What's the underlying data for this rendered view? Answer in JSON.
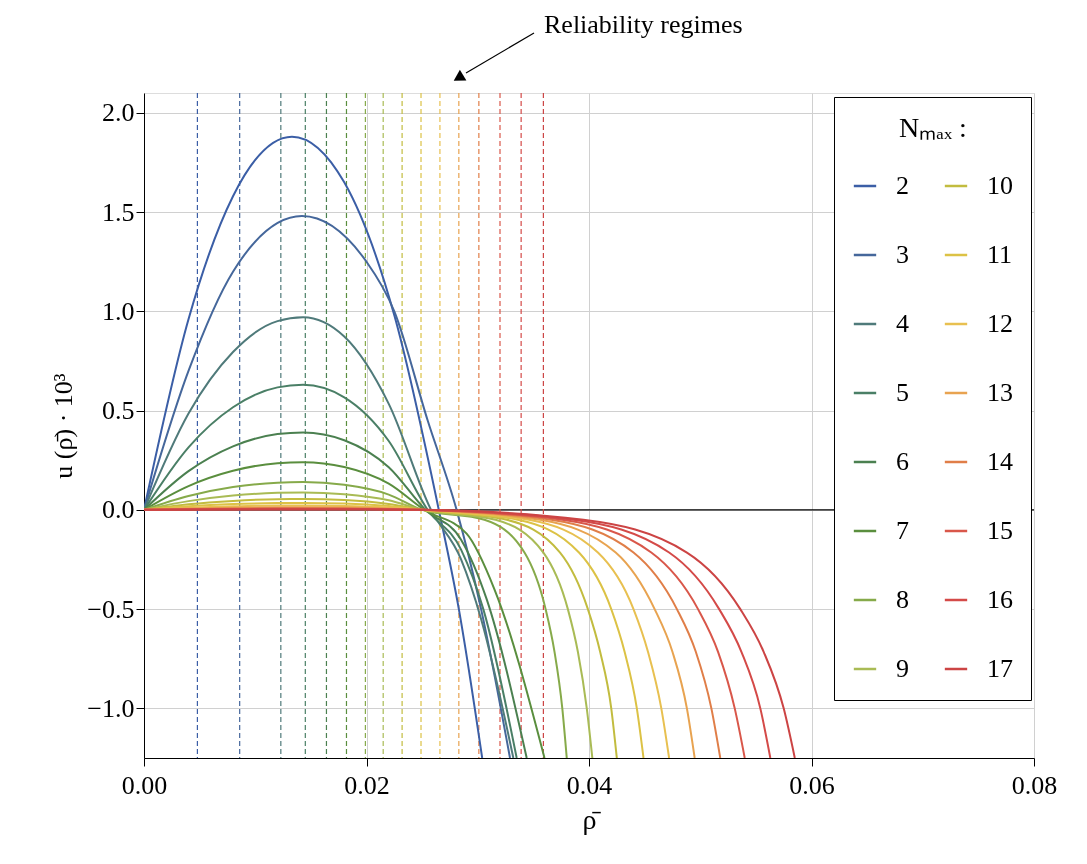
{
  "chart_data": {
    "type": "line",
    "xlabel": "ρ̄",
    "ylabel": "u (ρ̄) · 10³",
    "legend_title": "Nₘₐₓ :",
    "annotations": [
      "Reliability regimes"
    ],
    "xlim": [
      0,
      0.08
    ],
    "ylim": [
      -1.25,
      2.1
    ],
    "xticks": [
      {
        "value": 0,
        "label": "0.00"
      },
      {
        "value": 0.02,
        "label": "0.02"
      },
      {
        "value": 0.04,
        "label": "0.04"
      },
      {
        "value": 0.06,
        "label": "0.06"
      },
      {
        "value": 0.08,
        "label": "0.08"
      }
    ],
    "yticks": [
      {
        "value": -1,
        "label": "−1.0"
      },
      {
        "value": -0.5,
        "label": "−0.5"
      },
      {
        "value": 0,
        "label": "0.0"
      },
      {
        "value": 0.5,
        "label": "0.5"
      },
      {
        "value": 1,
        "label": "1.0"
      },
      {
        "value": 1.5,
        "label": "1.5"
      },
      {
        "value": 2,
        "label": "2.0"
      }
    ],
    "grid": true,
    "legend": "right",
    "series": [
      {
        "name": "2",
        "color": "#3b5ea6",
        "x": [
          0,
          0.004,
          0.008,
          0.0133,
          0.018,
          0.0225,
          0.0265,
          0.0283,
          0.0304
        ],
        "values": [
          0,
          0.96,
          1.58,
          1.88,
          1.65,
          0.98,
          0,
          -0.5,
          -1.25
        ]
      },
      {
        "name": "3",
        "color": "#45679b",
        "x": [
          0,
          0.004,
          0.008,
          0.0142,
          0.02,
          0.0225,
          0.0255,
          0.0281,
          0.0303,
          0.0329
        ],
        "values": [
          0,
          0.7,
          1.2,
          1.48,
          1.25,
          1.0,
          0.45,
          0,
          -0.5,
          -1.25
        ]
      },
      {
        "name": "4",
        "color": "#4f7a7a",
        "x": [
          0,
          0.004,
          0.008,
          0.012,
          0.0143,
          0.018,
          0.022,
          0.0258,
          0.0285,
          0.0303,
          0.0332
        ],
        "values": [
          0,
          0.485,
          0.795,
          0.951,
          0.97,
          0.873,
          0.534,
          0,
          -0.25,
          -0.55,
          -1.25
        ]
      },
      {
        "name": "5",
        "color": "#4a7f66",
        "x": [
          0,
          0.004,
          0.008,
          0.012,
          0.0143,
          0.018,
          0.022,
          0.0255,
          0.0285,
          0.0305,
          0.0335
        ],
        "values": [
          0,
          0.315,
          0.517,
          0.617,
          0.63,
          0.567,
          0.347,
          0,
          -0.2,
          -0.5,
          -1.25
        ]
      },
      {
        "name": "6",
        "color": "#4b8050",
        "x": [
          0,
          0.004,
          0.008,
          0.012,
          0.0143,
          0.018,
          0.022,
          0.0253,
          0.0285,
          0.0308,
          0.0344
        ],
        "values": [
          0,
          0.195,
          0.32,
          0.382,
          0.39,
          0.351,
          0.215,
          0,
          -0.15,
          -0.45,
          -1.25
        ]
      },
      {
        "name": "7",
        "color": "#5a8e3e",
        "x": [
          0,
          0.004,
          0.008,
          0.012,
          0.0143,
          0.018,
          0.022,
          0.0252,
          0.029,
          0.0315,
          0.036
        ],
        "values": [
          0,
          0.12,
          0.197,
          0.235,
          0.24,
          0.216,
          0.132,
          0,
          -0.12,
          -0.4,
          -1.25
        ]
      },
      {
        "name": "8",
        "color": "#86aa4a",
        "x": [
          0,
          0.004,
          0.008,
          0.012,
          0.0143,
          0.018,
          0.022,
          0.025,
          0.0306,
          0.0342,
          0.0361,
          0.0369,
          0.0376,
          0.038
        ],
        "values": [
          0,
          0.07,
          0.115,
          0.137,
          0.14,
          0.126,
          0.077,
          0,
          -0.05,
          -0.215,
          -0.5,
          -0.715,
          -1.0,
          -1.25
        ]
      },
      {
        "name": "9",
        "color": "#a9bb55",
        "x": [
          0,
          0.004,
          0.008,
          0.012,
          0.0143,
          0.018,
          0.022,
          0.025,
          0.0316,
          0.0359,
          0.0381,
          0.039,
          0.0398,
          0.0403
        ],
        "values": [
          0,
          0.044,
          0.072,
          0.086,
          0.088,
          0.079,
          0.048,
          0,
          -0.05,
          -0.215,
          -0.5,
          -0.715,
          -1.0,
          -1.25
        ]
      },
      {
        "name": "10",
        "color": "#c2bc3f",
        "x": [
          0,
          0.004,
          0.008,
          0.012,
          0.0143,
          0.018,
          0.022,
          0.025,
          0.0326,
          0.0374,
          0.0399,
          0.041,
          0.042,
          0.0425
        ],
        "values": [
          0,
          0.028,
          0.045,
          0.054,
          0.055,
          0.05,
          0.03,
          0,
          -0.05,
          -0.215,
          -0.5,
          -0.715,
          -1.0,
          -1.25
        ]
      },
      {
        "name": "11",
        "color": "#dcc245",
        "x": [
          0,
          0.004,
          0.008,
          0.012,
          0.0143,
          0.018,
          0.022,
          0.025,
          0.0336,
          0.0391,
          0.042,
          0.0432,
          0.0443,
          0.0449
        ],
        "values": [
          0,
          0.018,
          0.029,
          0.034,
          0.035,
          0.032,
          0.019,
          0,
          -0.05,
          -0.215,
          -0.5,
          -0.715,
          -1.0,
          -1.25
        ]
      },
      {
        "name": "12",
        "color": "#e8c050",
        "x": [
          0,
          0.004,
          0.008,
          0.012,
          0.0143,
          0.018,
          0.022,
          0.025,
          0.0346,
          0.0408,
          0.044,
          0.0453,
          0.0465,
          0.0472
        ],
        "values": [
          0,
          0.011,
          0.018,
          0.022,
          0.022,
          0.02,
          0.012,
          0,
          -0.05,
          -0.215,
          -0.5,
          -0.715,
          -1.0,
          -1.25
        ]
      },
      {
        "name": "13",
        "color": "#e8a350",
        "x": [
          0,
          0.004,
          0.008,
          0.012,
          0.0143,
          0.018,
          0.022,
          0.025,
          0.0356,
          0.0424,
          0.0459,
          0.0475,
          0.0488,
          0.0495
        ],
        "values": [
          0,
          0.007,
          0.011,
          0.013,
          0.013,
          0.012,
          0.007,
          0,
          -0.05,
          -0.215,
          -0.5,
          -0.715,
          -1.0,
          -1.25
        ]
      },
      {
        "name": "14",
        "color": "#e07e48",
        "x": [
          0,
          0.004,
          0.008,
          0.012,
          0.0143,
          0.018,
          0.022,
          0.025,
          0.0366,
          0.044,
          0.0479,
          0.0496,
          0.051,
          0.0518
        ],
        "values": [
          0,
          0.004,
          0.007,
          0.008,
          0.008,
          0.007,
          0.004,
          0,
          -0.05,
          -0.215,
          -0.5,
          -0.715,
          -1.0,
          -1.25
        ]
      },
      {
        "name": "15",
        "color": "#d9574a",
        "x": [
          0,
          0.004,
          0.008,
          0.012,
          0.0143,
          0.018,
          0.022,
          0.025,
          0.0376,
          0.0456,
          0.0498,
          0.0516,
          0.0531,
          0.054
        ],
        "values": [
          0,
          0.003,
          0.004,
          0.005,
          0.005,
          0.005,
          0.003,
          0,
          -0.05,
          -0.215,
          -0.5,
          -0.715,
          -1.0,
          -1.25
        ]
      },
      {
        "name": "16",
        "color": "#d44a48",
        "x": [
          0,
          0.004,
          0.008,
          0.012,
          0.0143,
          0.018,
          0.022,
          0.025,
          0.0386,
          0.0472,
          0.0517,
          0.0537,
          0.0554,
          0.0563
        ],
        "values": [
          0,
          0.002,
          0.002,
          0.003,
          0.003,
          0.003,
          0.002,
          0,
          -0.05,
          -0.215,
          -0.5,
          -0.715,
          -1.0,
          -1.25
        ]
      },
      {
        "name": "17",
        "color": "#cc4444",
        "x": [
          0,
          0.004,
          0.008,
          0.012,
          0.0143,
          0.018,
          0.022,
          0.025,
          0.0395,
          0.0488,
          0.0536,
          0.0557,
          0.0575,
          0.0585
        ],
        "values": [
          0,
          0.001,
          0.002,
          0.002,
          0.002,
          0.002,
          0.001,
          0,
          -0.05,
          -0.215,
          -0.5,
          -0.715,
          -1.0,
          -1.25
        ]
      }
    ],
    "ref_lines": [
      {
        "axis": "y",
        "value": 0,
        "color": "#000000",
        "line_style": "solid"
      },
      {
        "axis": "x",
        "value": 0.0048,
        "color": "#3b5ea6",
        "line_style": "dashed"
      },
      {
        "axis": "x",
        "value": 0.0086,
        "color": "#45679b",
        "line_style": "dashed"
      },
      {
        "axis": "x",
        "value": 0.0123,
        "color": "#4f7a7a",
        "line_style": "dashed"
      },
      {
        "axis": "x",
        "value": 0.0145,
        "color": "#4a7f66",
        "line_style": "dashed"
      },
      {
        "axis": "x",
        "value": 0.0164,
        "color": "#4b8050",
        "line_style": "dashed"
      },
      {
        "axis": "x",
        "value": 0.0182,
        "color": "#5a8e3e",
        "line_style": "dashed"
      },
      {
        "axis": "x",
        "value": 0.0199,
        "color": "#86aa4a",
        "line_style": "dashed"
      },
      {
        "axis": "x",
        "value": 0.0215,
        "color": "#a9bb55",
        "line_style": "dashed"
      },
      {
        "axis": "x",
        "value": 0.0232,
        "color": "#c2bc3f",
        "line_style": "dashed"
      },
      {
        "axis": "x",
        "value": 0.0249,
        "color": "#dcc245",
        "line_style": "dashed"
      },
      {
        "axis": "x",
        "value": 0.0266,
        "color": "#e8c050",
        "line_style": "dashed"
      },
      {
        "axis": "x",
        "value": 0.0283,
        "color": "#e8a350",
        "line_style": "dashed"
      },
      {
        "axis": "x",
        "value": 0.0301,
        "color": "#e07e48",
        "line_style": "dashed"
      },
      {
        "axis": "x",
        "value": 0.032,
        "color": "#d9574a",
        "line_style": "dashed"
      },
      {
        "axis": "x",
        "value": 0.0339,
        "color": "#d44a48",
        "line_style": "dashed"
      },
      {
        "axis": "x",
        "value": 0.0359,
        "color": "#cc4444",
        "line_style": "dashed"
      }
    ]
  }
}
